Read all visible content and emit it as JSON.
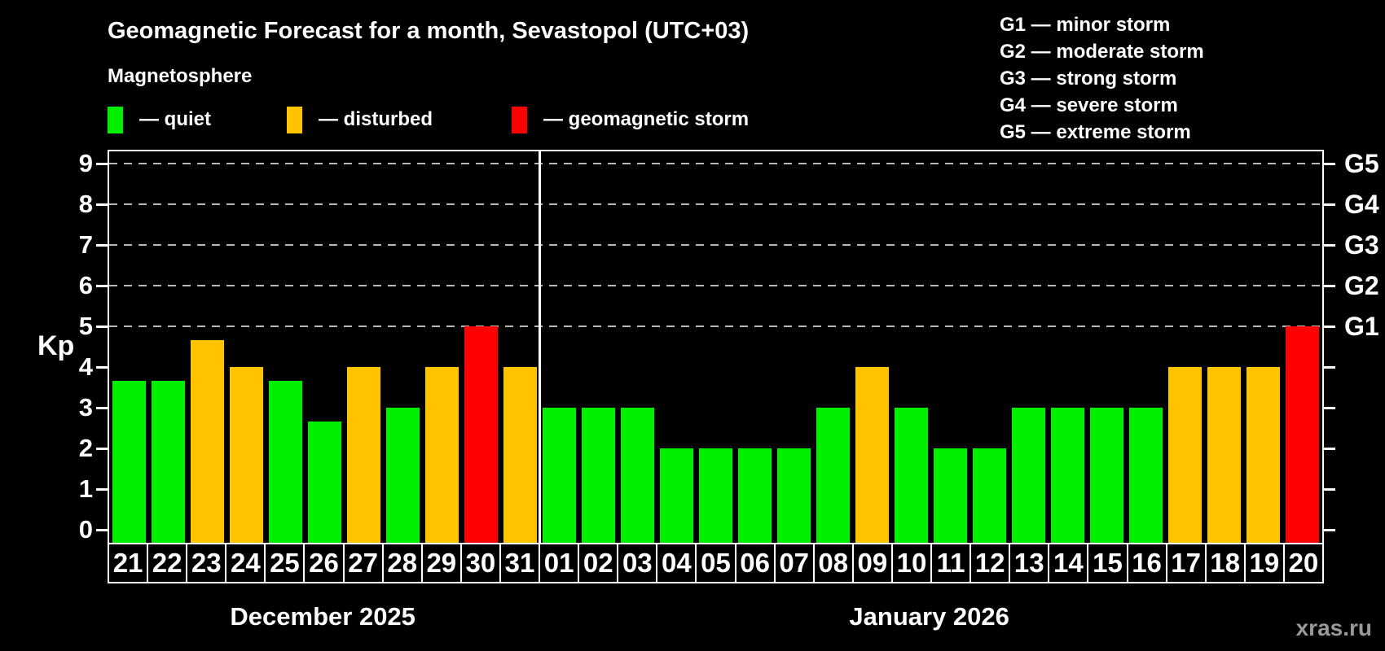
{
  "watermark": "xras.ru",
  "chart_data": {
    "type": "bar",
    "title": "Geomagnetic Forecast for a month, Sevastopol (UTC+03)",
    "subtitle": "Magnetosphere",
    "ylabel": "Kp",
    "ylim": [
      0,
      9.3
    ],
    "yticks": [
      0,
      1,
      2,
      3,
      4,
      5,
      6,
      7,
      8,
      9
    ],
    "gridlines_at_kp": [
      5,
      6,
      7,
      8,
      9
    ],
    "grid": "dashed horizontal lines at Kp 5-9 only",
    "legend_position": "top-left",
    "legend": [
      {
        "key": "quiet",
        "color": "#00ee00",
        "label": "— quiet"
      },
      {
        "key": "disturbed",
        "color": "#ffc300",
        "label": "— disturbed"
      },
      {
        "key": "storm",
        "color": "#ff0000",
        "label": "— geomagnetic storm"
      }
    ],
    "g_scale": [
      {
        "kp": 5,
        "axis_label": "G1",
        "legend_label": "G1 — minor storm"
      },
      {
        "kp": 6,
        "axis_label": "G2",
        "legend_label": "G2 — moderate storm"
      },
      {
        "kp": 7,
        "axis_label": "G3",
        "legend_label": "G3 — strong storm"
      },
      {
        "kp": 8,
        "axis_label": "G4",
        "legend_label": "G4 — severe storm"
      },
      {
        "kp": 9,
        "axis_label": "G5",
        "legend_label": "G5 — extreme storm"
      }
    ],
    "months": [
      {
        "label": "December 2025",
        "days": [
          {
            "date": "21",
            "kp": 3.67,
            "status": "quiet"
          },
          {
            "date": "22",
            "kp": 3.67,
            "status": "quiet"
          },
          {
            "date": "23",
            "kp": 4.67,
            "status": "disturbed"
          },
          {
            "date": "24",
            "kp": 4.0,
            "status": "disturbed"
          },
          {
            "date": "25",
            "kp": 3.67,
            "status": "quiet"
          },
          {
            "date": "26",
            "kp": 2.67,
            "status": "quiet"
          },
          {
            "date": "27",
            "kp": 4.0,
            "status": "disturbed"
          },
          {
            "date": "28",
            "kp": 3.0,
            "status": "quiet"
          },
          {
            "date": "29",
            "kp": 4.0,
            "status": "disturbed"
          },
          {
            "date": "30",
            "kp": 5.0,
            "status": "storm"
          },
          {
            "date": "31",
            "kp": 4.0,
            "status": "disturbed"
          }
        ]
      },
      {
        "label": "January 2026",
        "days": [
          {
            "date": "01",
            "kp": 3.0,
            "status": "quiet"
          },
          {
            "date": "02",
            "kp": 3.0,
            "status": "quiet"
          },
          {
            "date": "03",
            "kp": 3.0,
            "status": "quiet"
          },
          {
            "date": "04",
            "kp": 2.0,
            "status": "quiet"
          },
          {
            "date": "05",
            "kp": 2.0,
            "status": "quiet"
          },
          {
            "date": "06",
            "kp": 2.0,
            "status": "quiet"
          },
          {
            "date": "07",
            "kp": 2.0,
            "status": "quiet"
          },
          {
            "date": "08",
            "kp": 3.0,
            "status": "quiet"
          },
          {
            "date": "09",
            "kp": 4.0,
            "status": "disturbed"
          },
          {
            "date": "10",
            "kp": 3.0,
            "status": "quiet"
          },
          {
            "date": "11",
            "kp": 2.0,
            "status": "quiet"
          },
          {
            "date": "12",
            "kp": 2.0,
            "status": "quiet"
          },
          {
            "date": "13",
            "kp": 3.0,
            "status": "quiet"
          },
          {
            "date": "14",
            "kp": 3.0,
            "status": "quiet"
          },
          {
            "date": "15",
            "kp": 3.0,
            "status": "quiet"
          },
          {
            "date": "16",
            "kp": 3.0,
            "status": "quiet"
          },
          {
            "date": "17",
            "kp": 4.0,
            "status": "disturbed"
          },
          {
            "date": "18",
            "kp": 4.0,
            "status": "disturbed"
          },
          {
            "date": "19",
            "kp": 4.0,
            "status": "disturbed"
          },
          {
            "date": "20",
            "kp": 5.0,
            "status": "storm"
          }
        ]
      }
    ]
  }
}
